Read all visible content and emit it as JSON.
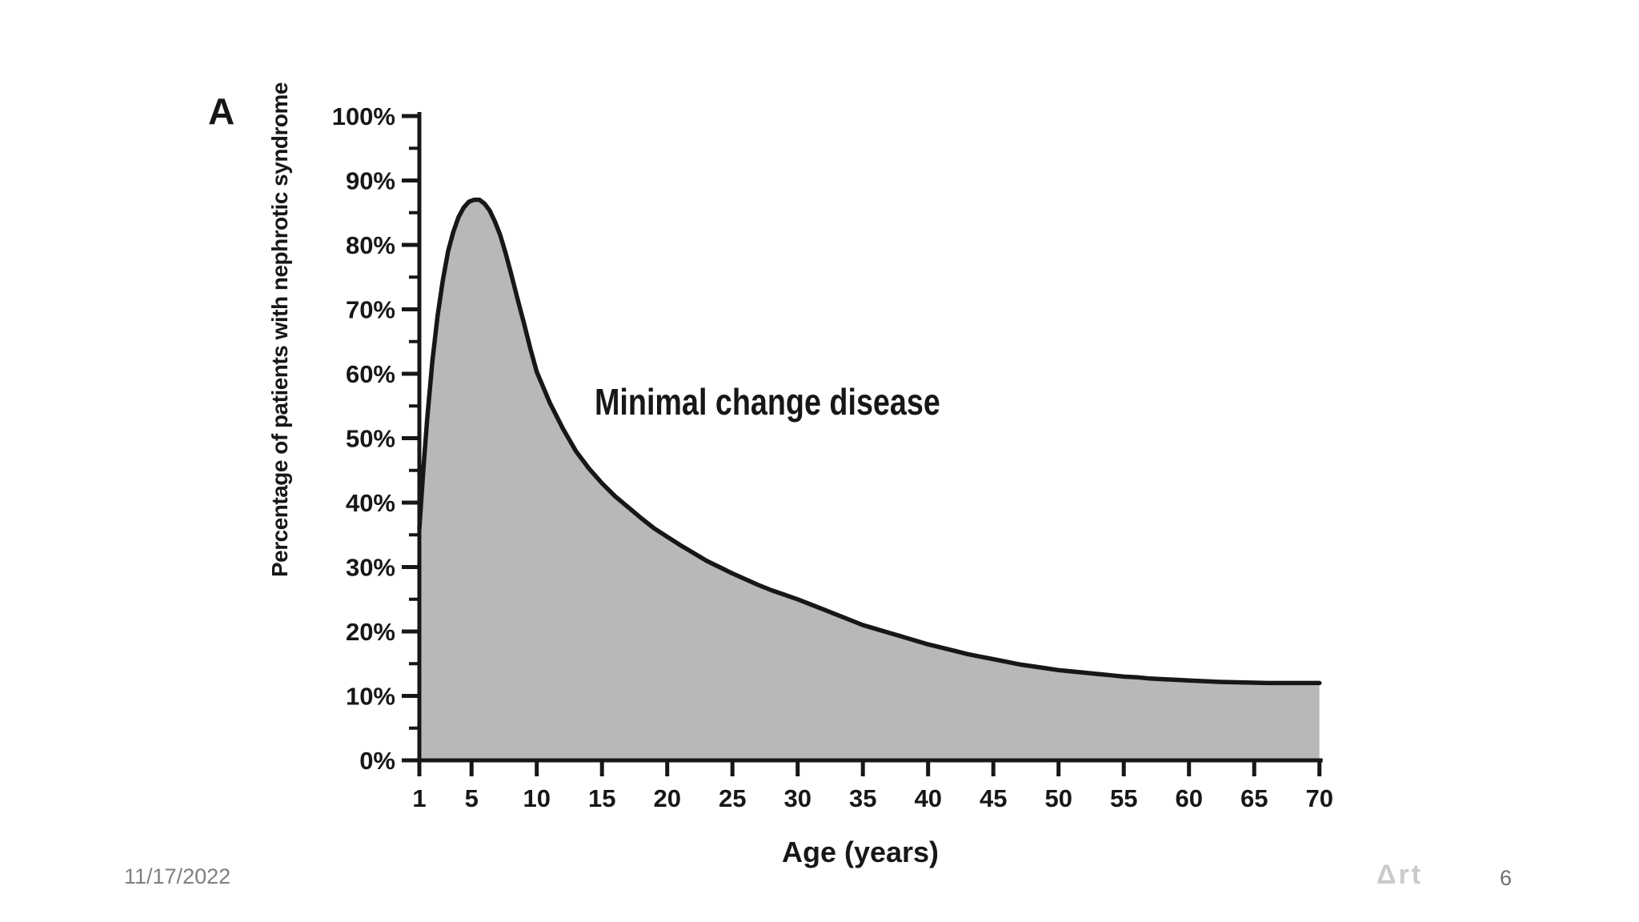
{
  "slide": {
    "panel_label": "A",
    "date": "11/17/2022",
    "watermark": "Δrt",
    "page_number": "6"
  },
  "chart_data": {
    "type": "area",
    "title": "",
    "annotation": "Minimal change disease",
    "xlabel": "Age (years)",
    "ylabel": "Percentage of patients with nephrotic syndrome",
    "xlim": [
      1,
      70
    ],
    "ylim": [
      0,
      100
    ],
    "grid": false,
    "legend": "none",
    "x_ticks": [
      1,
      5,
      10,
      15,
      20,
      25,
      30,
      35,
      40,
      45,
      50,
      55,
      60,
      65,
      70
    ],
    "y_ticks_percent": [
      0,
      10,
      20,
      30,
      40,
      50,
      60,
      70,
      80,
      90,
      100
    ],
    "y_minor_ticks_percent": [
      5,
      15,
      25,
      35,
      45,
      55,
      65,
      75,
      85,
      95
    ],
    "y_tick_suffix": "%",
    "line_color": "#171717",
    "fill_color": "#b8b8b8",
    "series": [
      {
        "name": "Minimal change disease",
        "points": [
          [
            1,
            36
          ],
          [
            1.3,
            45
          ],
          [
            1.6,
            53
          ],
          [
            2,
            62
          ],
          [
            2.4,
            69
          ],
          [
            2.8,
            74.5
          ],
          [
            3.2,
            79
          ],
          [
            3.6,
            82
          ],
          [
            4,
            84.3
          ],
          [
            4.4,
            85.8
          ],
          [
            4.8,
            86.7
          ],
          [
            5.2,
            87
          ],
          [
            5.6,
            87
          ],
          [
            6,
            86.4
          ],
          [
            6.4,
            85.3
          ],
          [
            6.8,
            83.6
          ],
          [
            7.2,
            81.5
          ],
          [
            7.6,
            78.8
          ],
          [
            8,
            75.8
          ],
          [
            8.5,
            71.8
          ],
          [
            9,
            68
          ],
          [
            9.5,
            64
          ],
          [
            10,
            60.3
          ],
          [
            11,
            55.5
          ],
          [
            12,
            51.5
          ],
          [
            13,
            48
          ],
          [
            14,
            45.3
          ],
          [
            15,
            43
          ],
          [
            16,
            41
          ],
          [
            17,
            39.3
          ],
          [
            18,
            37.6
          ],
          [
            19,
            36
          ],
          [
            20,
            34.7
          ],
          [
            21,
            33.4
          ],
          [
            22,
            32.2
          ],
          [
            23,
            31
          ],
          [
            24,
            30
          ],
          [
            25,
            29
          ],
          [
            26,
            28.1
          ],
          [
            27,
            27.2
          ],
          [
            28,
            26.4
          ],
          [
            29,
            25.7
          ],
          [
            30,
            25
          ],
          [
            31,
            24.2
          ],
          [
            32,
            23.4
          ],
          [
            33,
            22.6
          ],
          [
            34,
            21.8
          ],
          [
            35,
            21
          ],
          [
            36,
            20.4
          ],
          [
            37,
            19.8
          ],
          [
            38,
            19.2
          ],
          [
            39,
            18.6
          ],
          [
            40,
            18
          ],
          [
            41,
            17.5
          ],
          [
            42,
            17
          ],
          [
            43,
            16.5
          ],
          [
            44,
            16.1
          ],
          [
            45,
            15.7
          ],
          [
            46,
            15.3
          ],
          [
            47,
            14.9
          ],
          [
            48,
            14.6
          ],
          [
            49,
            14.3
          ],
          [
            50,
            14
          ],
          [
            51,
            13.8
          ],
          [
            52,
            13.6
          ],
          [
            53,
            13.4
          ],
          [
            54,
            13.2
          ],
          [
            55,
            13
          ],
          [
            56,
            12.9
          ],
          [
            57,
            12.7
          ],
          [
            58,
            12.6
          ],
          [
            59,
            12.5
          ],
          [
            60,
            12.4
          ],
          [
            62,
            12.2
          ],
          [
            64,
            12.1
          ],
          [
            66,
            12
          ],
          [
            68,
            12
          ],
          [
            70,
            12
          ]
        ]
      }
    ]
  }
}
